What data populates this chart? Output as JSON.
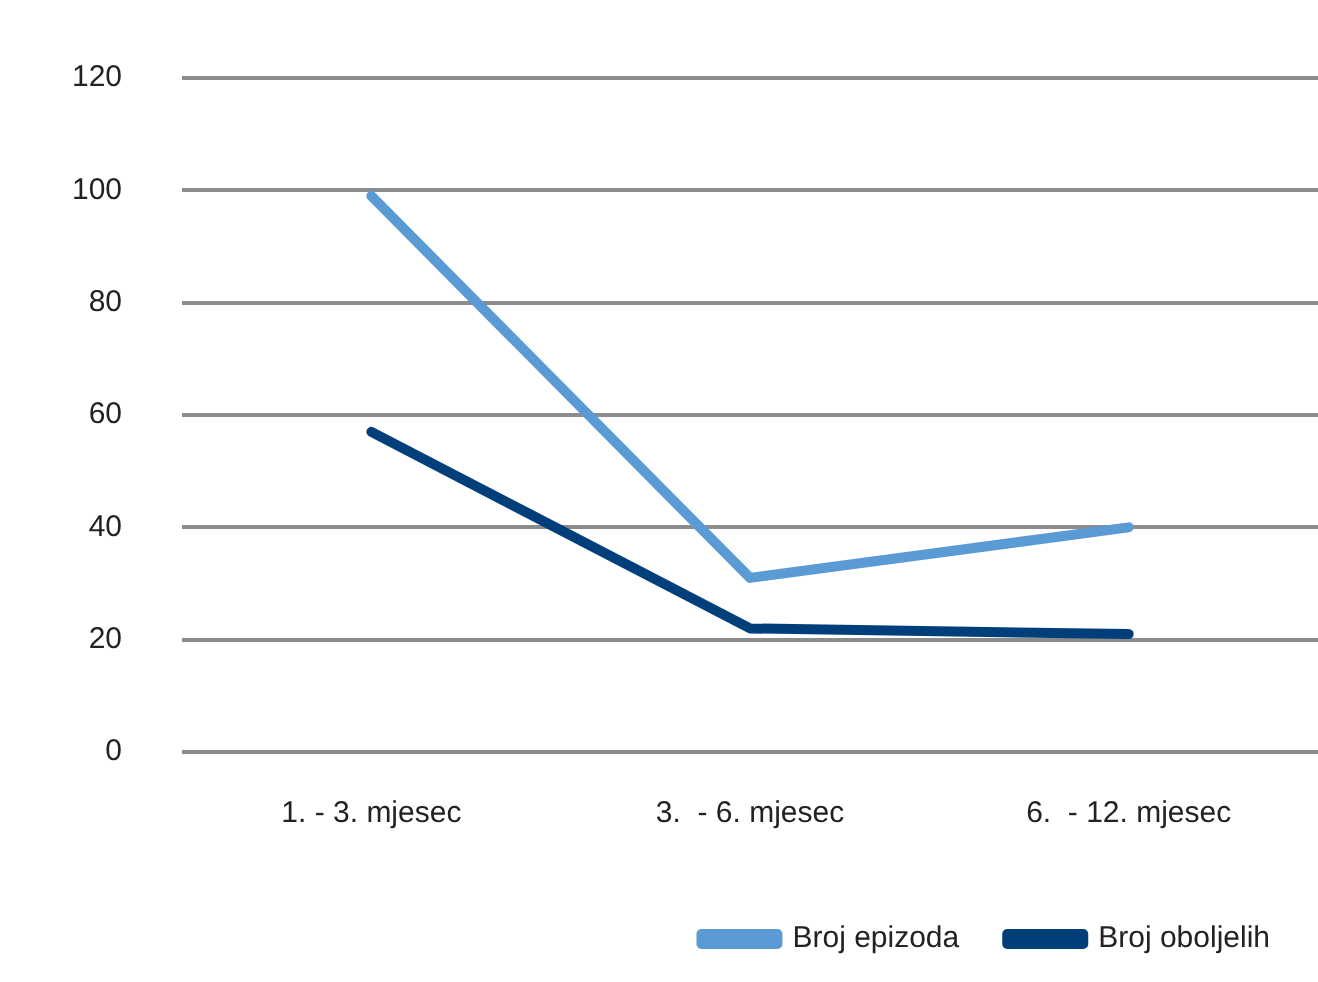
{
  "chart_data": {
    "type": "line",
    "categories": [
      "1. - 3. mjesec",
      "3.  - 6. mjesec",
      "6.  - 12. mjesec"
    ],
    "series": [
      {
        "name": "Broj epizoda",
        "color": "#5b9bd5",
        "values": [
          99,
          31,
          40
        ]
      },
      {
        "name": "Broj oboljelih",
        "color": "#003f7a",
        "values": [
          57,
          22,
          21
        ]
      }
    ],
    "ylim": [
      0,
      120
    ],
    "yticks": [
      0,
      20,
      40,
      60,
      80,
      100,
      120
    ],
    "grid": "y",
    "legend": "bottom",
    "marker": "none",
    "line_style": "solid"
  }
}
